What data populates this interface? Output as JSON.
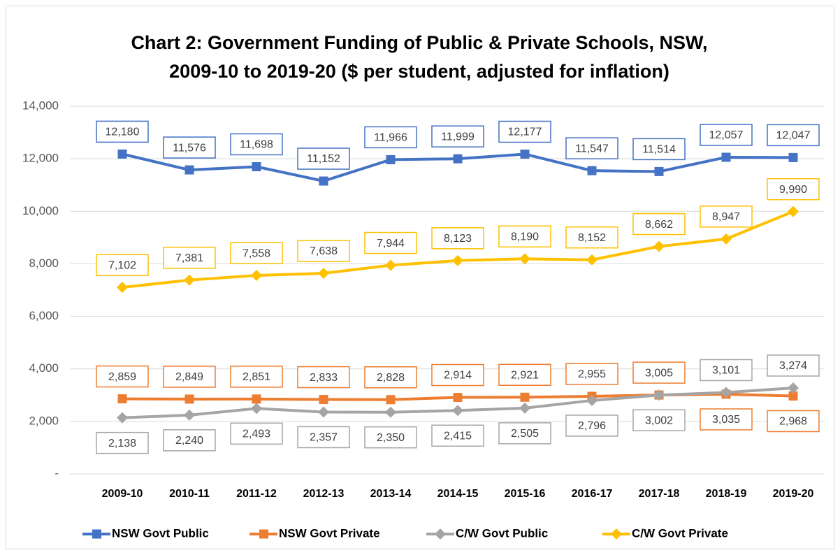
{
  "chart_data": {
    "type": "line",
    "title": [
      "Chart 2: Government Funding of Public & Private Schools, NSW,",
      "2009-10 to 2019-20 ($ per student, adjusted for inflation)"
    ],
    "categories": [
      "2009-10",
      "2010-11",
      "2011-12",
      "2012-13",
      "2013-14",
      "2014-15",
      "2015-16",
      "2016-17",
      "2017-18",
      "2018-19",
      "2019-20"
    ],
    "series": [
      {
        "name": "NSW Govt Public",
        "color": "#4472c4",
        "marker": "square",
        "values": [
          12180,
          11576,
          11698,
          11152,
          11966,
          11999,
          12177,
          11547,
          11514,
          12057,
          12047
        ],
        "value_labels": [
          "12,180",
          "11,576",
          "11,698",
          "11,152",
          "11,966",
          "11,999",
          "12,177",
          "11,547",
          "11,514",
          "12,057",
          "12,047"
        ]
      },
      {
        "name": "NSW Govt Private",
        "color": "#ed7d31",
        "marker": "square",
        "values": [
          2859,
          2849,
          2851,
          2833,
          2828,
          2914,
          2921,
          2955,
          3005,
          3035,
          2968
        ],
        "value_labels": [
          "2,859",
          "2,849",
          "2,851",
          "2,833",
          "2,828",
          "2,914",
          "2,921",
          "2,955",
          "3,005",
          "3,035",
          "2,968"
        ]
      },
      {
        "name": "C/W Govt Public",
        "color": "#a5a5a5",
        "marker": "diamond",
        "values": [
          2138,
          2240,
          2493,
          2357,
          2350,
          2415,
          2505,
          2796,
          3002,
          3101,
          3274
        ],
        "value_labels": [
          "2,138",
          "2,240",
          "2,493",
          "2,357",
          "2,350",
          "2,415",
          "2,505",
          "2,796",
          "3,002",
          "3,101",
          "3,274"
        ]
      },
      {
        "name": "C/W Govt Private",
        "color": "#ffc000",
        "marker": "diamond",
        "values": [
          7102,
          7381,
          7558,
          7638,
          7944,
          8123,
          8190,
          8152,
          8662,
          8947,
          9990
        ],
        "value_labels": [
          "7,102",
          "7,381",
          "7,558",
          "7,638",
          "7,944",
          "8,123",
          "8,190",
          "8,152",
          "8,662",
          "8,947",
          "9,990"
        ]
      }
    ],
    "ylim": [
      0,
      14000
    ],
    "yticks": [
      {
        "value": 0,
        "label": "-"
      },
      {
        "value": 2000,
        "label": "2,000"
      },
      {
        "value": 4000,
        "label": "4,000"
      },
      {
        "value": 6000,
        "label": "6,000"
      },
      {
        "value": 8000,
        "label": "8,000"
      },
      {
        "value": 10000,
        "label": "10,000"
      },
      {
        "value": 12000,
        "label": "12,000"
      },
      {
        "value": 14000,
        "label": "14,000"
      }
    ],
    "grid": true,
    "legend": "bottom"
  }
}
